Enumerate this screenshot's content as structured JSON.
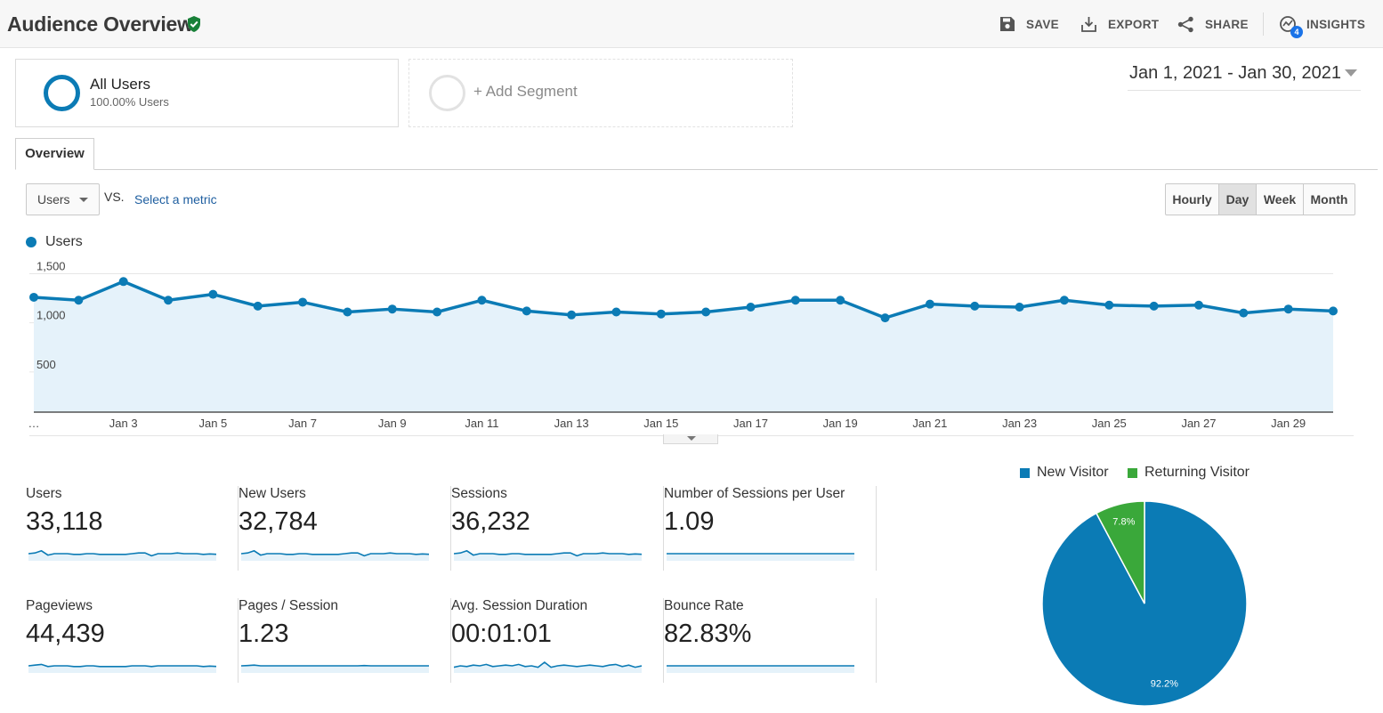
{
  "header": {
    "title": "Audience Overview",
    "actions": {
      "save": "SAVE",
      "export": "EXPORT",
      "share": "SHARE",
      "insights": "INSIGHTS",
      "insights_badge": "4"
    }
  },
  "segments": {
    "active": {
      "name": "All Users",
      "detail": "100.00% Users"
    },
    "add_label": "+ Add Segment"
  },
  "date_range": "Jan 1, 2021 - Jan 30, 2021",
  "tabs": [
    "Overview"
  ],
  "controls": {
    "metric": "Users",
    "vs": "VS.",
    "select_metric": "Select a metric",
    "periods": [
      "Hourly",
      "Day",
      "Week",
      "Month"
    ],
    "active_period": "Day"
  },
  "colors": {
    "primary": "#0b7bb5",
    "area_fill": "#e5f2fa",
    "returning": "#3aa83a"
  },
  "chart_data": [
    {
      "type": "area",
      "legend": [
        "Users"
      ],
      "legend_position": "top-left",
      "x": [
        "…",
        "Jan 2",
        "Jan 3",
        "Jan 4",
        "Jan 5",
        "Jan 6",
        "Jan 7",
        "Jan 8",
        "Jan 9",
        "Jan 10",
        "Jan 11",
        "Jan 12",
        "Jan 13",
        "Jan 14",
        "Jan 15",
        "Jan 16",
        "Jan 17",
        "Jan 18",
        "Jan 19",
        "Jan 20",
        "Jan 21",
        "Jan 22",
        "Jan 23",
        "Jan 24",
        "Jan 25",
        "Jan 26",
        "Jan 27",
        "Jan 28",
        "Jan 29",
        "Jan 30"
      ],
      "x_tick_labels": [
        "…",
        "Jan 3",
        "Jan 5",
        "Jan 7",
        "Jan 9",
        "Jan 11",
        "Jan 13",
        "Jan 15",
        "Jan 17",
        "Jan 19",
        "Jan 21",
        "Jan 23",
        "Jan 25",
        "Jan 27",
        "Jan 29"
      ],
      "y_tick_labels": [
        "1,500",
        "1,000",
        "500"
      ],
      "series": [
        {
          "name": "Users",
          "values": [
            1260,
            1230,
            1420,
            1230,
            1290,
            1170,
            1210,
            1110,
            1140,
            1110,
            1230,
            1120,
            1080,
            1110,
            1090,
            1110,
            1160,
            1230,
            1230,
            1050,
            1190,
            1170,
            1160,
            1230,
            1180,
            1170,
            1180,
            1100,
            1140,
            1120
          ]
        }
      ],
      "ylim": [
        0,
        1500
      ],
      "grid": true
    },
    {
      "type": "pie",
      "categories": [
        "New Visitor",
        "Returning Visitor"
      ],
      "values": [
        92.2,
        7.8
      ],
      "slice_labels": [
        "92.2%",
        "7.8%"
      ],
      "legend_position": "top"
    }
  ],
  "scorecards": [
    {
      "name": "Users",
      "value": "33,118",
      "spark": [
        1.0,
        1.05,
        1.2,
        0.9,
        1.0,
        1.0,
        1.0,
        0.95,
        0.95,
        1.0,
        1.0,
        0.95,
        0.95,
        0.95,
        0.95,
        0.95,
        1.0,
        1.05,
        1.05,
        0.85,
        1.0,
        1.0,
        1.0,
        1.05,
        1.0,
        1.0,
        1.0,
        0.95,
        0.98,
        0.96
      ]
    },
    {
      "name": "New Users",
      "value": "32,784",
      "spark": [
        1.0,
        1.05,
        1.2,
        0.9,
        1.0,
        1.0,
        1.0,
        0.95,
        0.95,
        1.0,
        1.0,
        0.95,
        0.95,
        0.95,
        0.95,
        0.95,
        1.0,
        1.05,
        1.05,
        0.85,
        1.0,
        1.0,
        1.0,
        1.05,
        1.0,
        1.0,
        1.0,
        0.95,
        0.98,
        0.96
      ]
    },
    {
      "name": "Sessions",
      "value": "36,232",
      "spark": [
        1.0,
        1.05,
        1.2,
        0.9,
        1.0,
        1.0,
        1.0,
        0.95,
        0.95,
        1.0,
        1.0,
        0.95,
        0.95,
        0.95,
        0.95,
        0.95,
        1.0,
        1.05,
        1.05,
        0.85,
        1.0,
        1.0,
        1.0,
        1.05,
        1.0,
        1.0,
        1.0,
        0.95,
        0.98,
        0.96
      ]
    },
    {
      "name": "Number of Sessions per User",
      "value": "1.09",
      "spark": [
        1.0,
        1.0,
        1.0,
        1.0,
        1.0,
        1.0,
        1.0,
        1.0,
        1.0,
        1.0,
        1.0,
        1.0,
        1.0,
        1.0,
        1.0,
        1.0,
        1.0,
        1.0,
        1.0,
        1.0,
        1.0,
        1.0,
        1.0,
        1.0,
        1.0,
        1.0,
        1.0,
        1.0,
        1.0,
        1.0
      ]
    },
    {
      "name": "Pageviews",
      "value": "44,439",
      "spark": [
        1.0,
        1.05,
        1.1,
        0.95,
        1.0,
        1.0,
        1.0,
        0.95,
        0.95,
        1.0,
        1.0,
        0.95,
        0.95,
        0.95,
        0.95,
        0.95,
        1.0,
        1.0,
        1.0,
        0.95,
        1.0,
        1.0,
        1.0,
        1.0,
        1.0,
        1.0,
        1.0,
        0.95,
        0.98,
        0.96
      ]
    },
    {
      "name": "Pages / Session",
      "value": "1.23",
      "spark": [
        1.0,
        1.02,
        1.05,
        1.0,
        1.0,
        1.0,
        1.0,
        1.0,
        1.0,
        1.0,
        1.0,
        1.0,
        1.0,
        1.0,
        1.0,
        1.0,
        1.0,
        1.0,
        1.0,
        1.02,
        1.0,
        1.0,
        1.0,
        1.0,
        1.0,
        1.0,
        1.0,
        1.0,
        1.0,
        1.0
      ]
    },
    {
      "name": "Avg. Session Duration",
      "value": "00:01:01",
      "spark": [
        0.9,
        1.0,
        0.95,
        1.05,
        1.0,
        1.1,
        0.95,
        1.0,
        1.05,
        1.0,
        1.1,
        0.95,
        1.0,
        0.9,
        1.25,
        0.9,
        1.0,
        1.05,
        1.0,
        0.95,
        1.0,
        1.05,
        1.0,
        0.95,
        1.05,
        1.1,
        0.95,
        1.05,
        0.9,
        1.0
      ]
    },
    {
      "name": "Bounce Rate",
      "value": "82.83%",
      "spark": [
        1.0,
        1.0,
        1.0,
        1.0,
        1.0,
        1.0,
        1.0,
        1.0,
        1.0,
        1.0,
        1.0,
        1.0,
        1.0,
        1.0,
        1.0,
        1.0,
        1.0,
        1.0,
        1.0,
        1.0,
        1.0,
        1.0,
        1.0,
        1.0,
        1.0,
        1.0,
        1.0,
        1.0,
        1.0,
        1.0
      ]
    }
  ]
}
